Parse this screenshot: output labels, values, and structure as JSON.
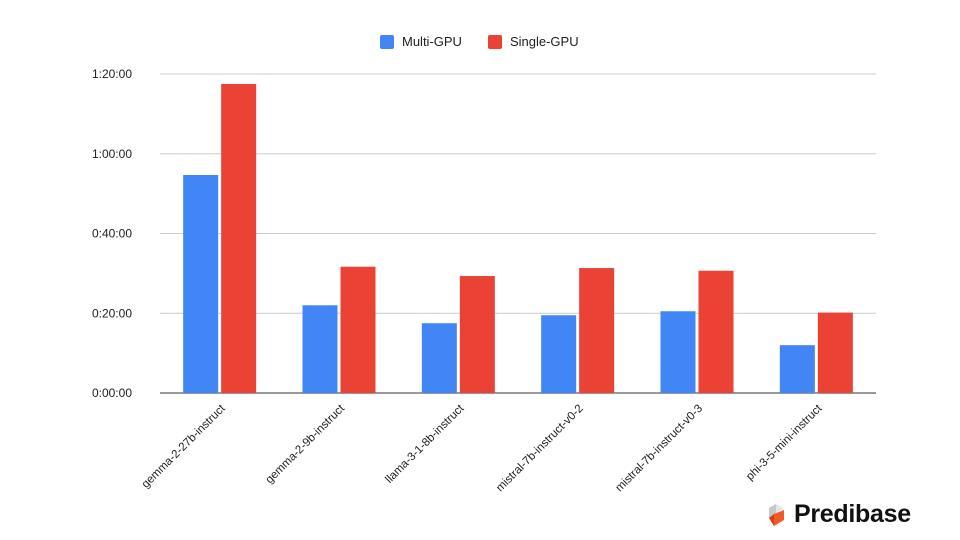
{
  "chart_data": {
    "type": "bar",
    "categories": [
      "gemma-2-27b-instruct",
      "gemma-2-9b-instruct",
      "llama-3-1-8b-instruct",
      "mistral-7b-instruct-v0-2",
      "mistral-7b-instruct-v0-3",
      "phi-3-5-mini-instruct"
    ],
    "series": [
      {
        "name": "Multi-GPU",
        "color": "#4285f4",
        "values_seconds": [
          3280,
          1320,
          1050,
          1170,
          1230,
          720
        ]
      },
      {
        "name": "Single-GPU",
        "color": "#ea4335",
        "values_seconds": [
          4650,
          1900,
          1760,
          1880,
          1840,
          1210
        ]
      }
    ],
    "y_ticks": [
      "0:00:00",
      "0:20:00",
      "0:40:00",
      "1:00:00",
      "1:20:00"
    ],
    "ylim_seconds": [
      0,
      4800
    ],
    "grid": true,
    "legend_position": "top-center",
    "title": "",
    "xlabel": "",
    "ylabel": ""
  },
  "legend": {
    "multi_label": "Multi-GPU",
    "single_label": "Single-GPU"
  },
  "logo": {
    "text": "Predibase"
  }
}
